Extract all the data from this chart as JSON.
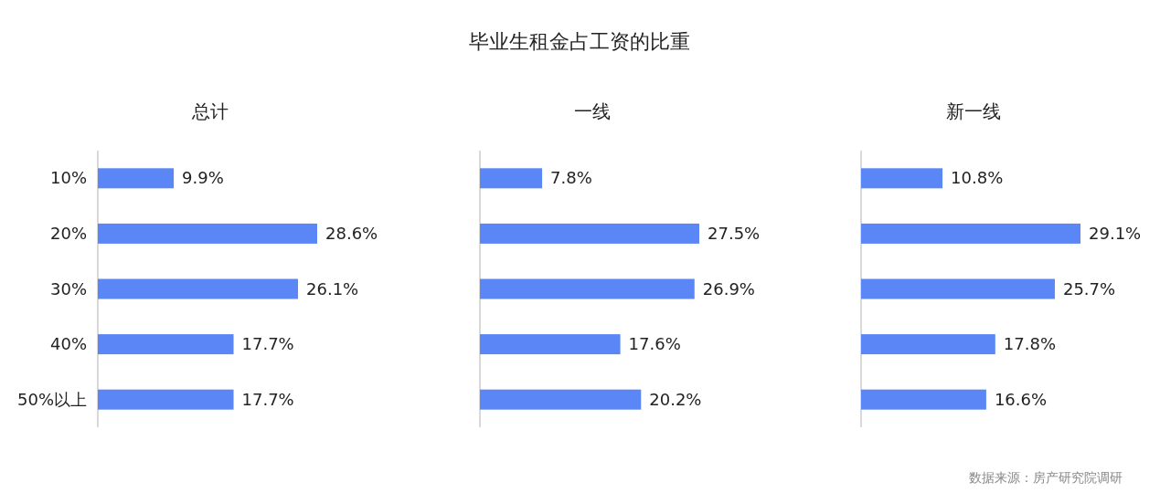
{
  "chart_data": [
    {
      "type": "other",
      "title": "毕业生租金占工资的比重",
      "annotations": [
        "数据来源：房产研究院调研"
      ]
    },
    {
      "type": "bar",
      "orientation": "horizontal",
      "title": "总计",
      "categories": [
        "10%",
        "20%",
        "30%",
        "40%",
        "50%以上"
      ],
      "values": [
        9.9,
        28.6,
        26.1,
        17.7,
        17.7
      ],
      "color": "#5b86f5",
      "value_labels": [
        "9.9%",
        "28.6%",
        "26.1%",
        "17.7%",
        "17.7%"
      ]
    },
    {
      "type": "bar",
      "orientation": "horizontal",
      "title": "一线",
      "categories": [
        null,
        null,
        null,
        null,
        null
      ],
      "values": [
        7.8,
        27.5,
        26.9,
        17.6,
        20.2
      ],
      "color": "#5b86f5",
      "value_labels": [
        "7.8%",
        "27.5%",
        "26.9%",
        "17.6%",
        "20.2%"
      ]
    },
    {
      "type": "bar",
      "orientation": "horizontal",
      "title": "新一线",
      "categories": [
        null,
        null,
        null,
        null,
        null
      ],
      "values": [
        10.8,
        29.1,
        25.7,
        17.8,
        16.6
      ],
      "color": "#5b86f5",
      "value_labels": [
        "10.8%",
        "29.1%",
        "25.7%",
        "17.8%",
        "16.6%"
      ]
    }
  ]
}
